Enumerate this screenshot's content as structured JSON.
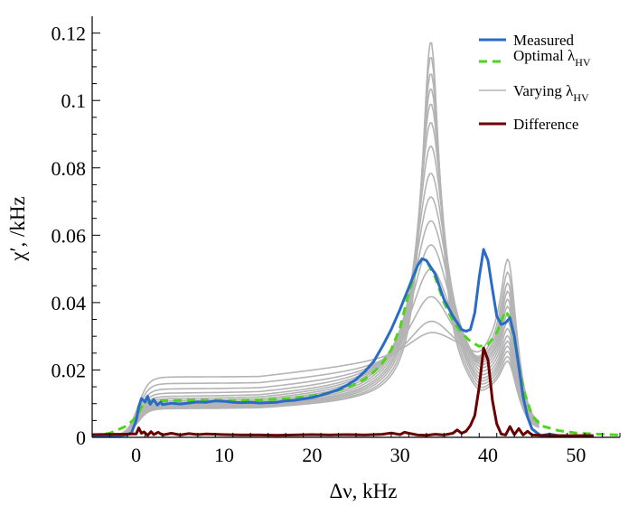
{
  "chart_data": {
    "type": "line",
    "title": "",
    "xlabel": "Δν, kHz",
    "ylabel": "χ′, /kHz",
    "xlim": [
      -5,
      55
    ],
    "ylim": [
      0,
      0.125
    ],
    "x_ticks": [
      0,
      10,
      20,
      30,
      40,
      50
    ],
    "y_ticks": [
      0,
      0.02,
      0.04,
      0.06,
      0.08,
      0.1,
      0.12
    ],
    "y_tick_labels": [
      "0",
      "0.02",
      "0.04",
      "0.06",
      "0.08",
      "0.1",
      "0.12"
    ],
    "grid": false,
    "legend_position": "top-right",
    "legend": [
      {
        "key": "measured",
        "label": "Measured",
        "sub": ""
      },
      {
        "key": "optimal",
        "label": "Optimal λ",
        "sub": "HV"
      },
      {
        "key": "varying",
        "label": "Varying λ",
        "sub": "HV"
      },
      {
        "key": "difference",
        "label": "Difference",
        "sub": ""
      }
    ],
    "colors": {
      "measured": "#2a6bc7",
      "optimal": "#4dd51a",
      "varying": "#b4b4b4",
      "difference": "#6b0000"
    },
    "series": [
      {
        "name": "Varying λHV",
        "key": "varying",
        "peak1": 0.034,
        "peak2": 0.0495,
        "plateau": 0.0175
      },
      {
        "name": "Varying λHV",
        "key": "varying",
        "peak1": 0.037,
        "peak2": 0.0475,
        "plateau": 0.0155
      },
      {
        "name": "Varying λHV",
        "key": "varying",
        "peak1": 0.044,
        "peak2": 0.0455,
        "plateau": 0.0138
      },
      {
        "name": "Varying λHV",
        "key": "varying",
        "peak1": 0.052,
        "peak2": 0.044,
        "plateau": 0.0125
      },
      {
        "name": "Varying λHV",
        "key": "varying",
        "peak1": 0.059,
        "peak2": 0.0425,
        "plateau": 0.0115
      },
      {
        "name": "Varying λHV",
        "key": "varying",
        "peak1": 0.066,
        "peak2": 0.041,
        "plateau": 0.0108
      },
      {
        "name": "Varying λHV",
        "key": "varying",
        "peak1": 0.073,
        "peak2": 0.0395,
        "plateau": 0.0102
      },
      {
        "name": "Varying λHV",
        "key": "varying",
        "peak1": 0.08,
        "peak2": 0.038,
        "plateau": 0.0097
      },
      {
        "name": "Varying λHV",
        "key": "varying",
        "peak1": 0.088,
        "peak2": 0.0365,
        "plateau": 0.0093
      },
      {
        "name": "Varying λHV",
        "key": "varying",
        "peak1": 0.095,
        "peak2": 0.035,
        "plateau": 0.009
      },
      {
        "name": "Varying λHV",
        "key": "varying",
        "peak1": 0.1005,
        "peak2": 0.034,
        "plateau": 0.0087
      },
      {
        "name": "Varying λHV",
        "key": "varying",
        "peak1": 0.105,
        "peak2": 0.033,
        "plateau": 0.0085
      },
      {
        "name": "Varying λHV",
        "key": "varying",
        "peak1": 0.1095,
        "peak2": 0.032,
        "plateau": 0.0083
      },
      {
        "name": "Varying λHV",
        "key": "varying",
        "peak1": 0.1145,
        "peak2": 0.031,
        "plateau": 0.0081
      },
      {
        "name": "Varying λHV",
        "key": "varying",
        "peak1": 0.119,
        "peak2": 0.03,
        "plateau": 0.008
      },
      {
        "name": "Optimal λHV",
        "key": "optimal",
        "x": [
          -5,
          -3,
          -1,
          0,
          0.5,
          1,
          2,
          4,
          6,
          8,
          10,
          12,
          14,
          16,
          18,
          20,
          22,
          24,
          26,
          27,
          28,
          29,
          30,
          31,
          32,
          32.5,
          33,
          34,
          35,
          36,
          37,
          38,
          39,
          40,
          41,
          41.5,
          42,
          42.5,
          43,
          43.5,
          44,
          45,
          46,
          48,
          50,
          52,
          55
        ],
        "y": [
          0.0005,
          0.0012,
          0.0035,
          0.006,
          0.0085,
          0.0103,
          0.0108,
          0.0109,
          0.011,
          0.011,
          0.011,
          0.011,
          0.0111,
          0.0113,
          0.0117,
          0.0123,
          0.0132,
          0.0147,
          0.0173,
          0.0193,
          0.022,
          0.026,
          0.0325,
          0.043,
          0.051,
          0.053,
          0.0525,
          0.0475,
          0.04,
          0.0345,
          0.031,
          0.0285,
          0.027,
          0.0275,
          0.031,
          0.0345,
          0.0375,
          0.0355,
          0.029,
          0.0215,
          0.0145,
          0.0065,
          0.0035,
          0.002,
          0.0013,
          0.001,
          0.0007
        ]
      },
      {
        "name": "Measured",
        "key": "measured",
        "x": [
          -5,
          -3,
          -2,
          -1,
          -0.5,
          0,
          0.3,
          0.6,
          1,
          1.3,
          1.6,
          2,
          2.4,
          2.8,
          3,
          4,
          5,
          6,
          7,
          8,
          9,
          10,
          11,
          12,
          13,
          14,
          15,
          16,
          17,
          18,
          19,
          20,
          21,
          22,
          23,
          24,
          25,
          26,
          27,
          28,
          29,
          30,
          31,
          32,
          32.5,
          33,
          34,
          35,
          36,
          37,
          37.5,
          38,
          38.5,
          39,
          39.5,
          40,
          40.5,
          41,
          41.5,
          42,
          42.5,
          43,
          43.5,
          44,
          44.5,
          45,
          45.5,
          46,
          47,
          48,
          49,
          50,
          51,
          52
        ],
        "y": [
          0.0003,
          0.0003,
          0.0004,
          0.0008,
          0.0015,
          0.005,
          0.009,
          0.0115,
          0.0105,
          0.0122,
          0.0098,
          0.0112,
          0.0096,
          0.0104,
          0.0097,
          0.0101,
          0.0099,
          0.0102,
          0.0105,
          0.0104,
          0.0108,
          0.0107,
          0.0104,
          0.0103,
          0.0104,
          0.0102,
          0.0103,
          0.0104,
          0.0108,
          0.011,
          0.0114,
          0.0118,
          0.0125,
          0.0133,
          0.0142,
          0.0155,
          0.0172,
          0.0195,
          0.0225,
          0.027,
          0.032,
          0.038,
          0.0445,
          0.051,
          0.053,
          0.0525,
          0.0485,
          0.041,
          0.036,
          0.032,
          0.0315,
          0.032,
          0.037,
          0.0475,
          0.0558,
          0.0525,
          0.044,
          0.036,
          0.0335,
          0.034,
          0.0355,
          0.03,
          0.021,
          0.012,
          0.006,
          0.0025,
          0.0015,
          0.0005,
          0.001,
          0.0005,
          0.0004,
          0.0004,
          0.0003,
          0.0003
        ]
      },
      {
        "name": "Difference",
        "key": "difference",
        "x": [
          -5,
          -2,
          -1,
          -0.5,
          0,
          0.3,
          0.6,
          0.9,
          1.3,
          1.7,
          2,
          2.5,
          3,
          4,
          5,
          6,
          7,
          8,
          10,
          12,
          14,
          16,
          18,
          20,
          22,
          24,
          26,
          28,
          29,
          30,
          30.5,
          31,
          32,
          33,
          34,
          35,
          36,
          36.5,
          37,
          37.5,
          38,
          38.5,
          39,
          39.5,
          40,
          40.5,
          41,
          41.5,
          42,
          42.5,
          43,
          43.5,
          44,
          44.5,
          45,
          46,
          48,
          50,
          52
        ],
        "y": [
          0.0008,
          0.0009,
          0.0009,
          0.001,
          0.001,
          0.0028,
          0.0012,
          0.0016,
          0.0006,
          0.0017,
          0.0008,
          0.0015,
          0.0007,
          0.0012,
          0.0007,
          0.0011,
          0.0008,
          0.001,
          0.0008,
          0.0007,
          0.0007,
          0.0006,
          0.0007,
          0.0008,
          0.0007,
          0.0008,
          0.0007,
          0.0009,
          0.0013,
          0.0008,
          0.0015,
          0.0012,
          0.0007,
          0.0006,
          0.0009,
          0.0007,
          0.0012,
          0.0022,
          0.0012,
          0.0018,
          0.0035,
          0.0065,
          0.015,
          0.0265,
          0.023,
          0.011,
          0.004,
          0.001,
          0.0007,
          0.0032,
          0.0008,
          0.0026,
          0.0007,
          0.0018,
          0.0007,
          0.0006,
          0.0005,
          0.0005,
          0.0005
        ]
      }
    ]
  }
}
